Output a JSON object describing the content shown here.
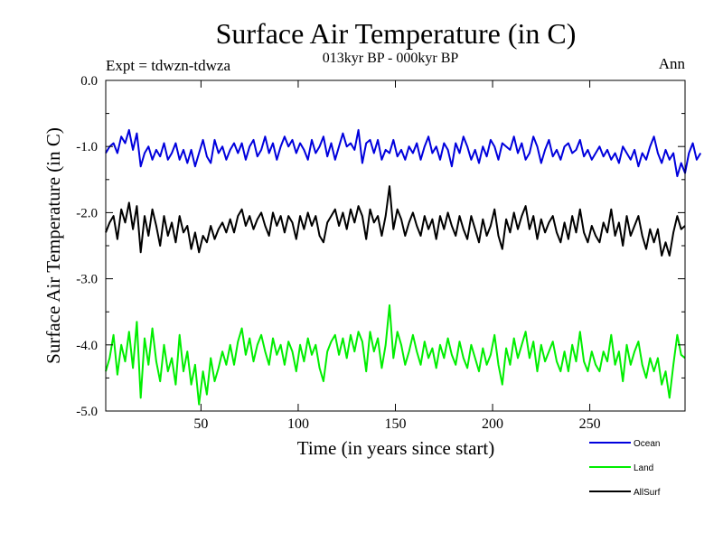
{
  "chart_data": {
    "type": "line",
    "title": "Surface Air Temperature (in C)",
    "subtitle": "013kyr BP - 000kyr BP",
    "left_note": "Expt = tdwzn-tdwza",
    "right_note": "Ann",
    "xlabel": "Time (in years since start)",
    "ylabel": "Surface Air Temperature (in C)",
    "xlim": [
      1,
      299
    ],
    "ylim": [
      -5.0,
      0.0
    ],
    "xticks": [
      50,
      100,
      150,
      200,
      250
    ],
    "xtick_labels": [
      "50",
      "100",
      "150",
      "200",
      "250"
    ],
    "yticks": [
      0.0,
      -1.0,
      -2.0,
      -3.0,
      -4.0,
      -5.0
    ],
    "ytick_labels": [
      "0.0",
      "-1.0",
      "-2.0",
      "-3.0",
      "-4.0",
      "-5.0"
    ],
    "grid": false,
    "legend_position": "bottom-right, below plot",
    "series": [
      {
        "name": "Ocean",
        "color": "#0000dd",
        "x_start": 1,
        "x_step": 2,
        "values": [
          -1.1,
          -1.0,
          -0.95,
          -1.1,
          -0.85,
          -0.95,
          -0.75,
          -1.05,
          -0.8,
          -1.3,
          -1.1,
          -1.0,
          -1.2,
          -1.05,
          -1.15,
          -0.95,
          -1.2,
          -1.1,
          -0.95,
          -1.2,
          -1.05,
          -1.25,
          -1.05,
          -1.3,
          -1.1,
          -0.9,
          -1.15,
          -1.25,
          -0.9,
          -1.1,
          -1.0,
          -1.2,
          -1.05,
          -0.95,
          -1.1,
          -0.95,
          -1.2,
          -1.0,
          -0.9,
          -1.15,
          -1.05,
          -0.85,
          -1.1,
          -0.95,
          -1.2,
          -1.0,
          -0.85,
          -1.0,
          -0.9,
          -1.1,
          -0.95,
          -1.05,
          -1.2,
          -0.9,
          -1.1,
          -1.0,
          -0.85,
          -1.15,
          -0.95,
          -1.2,
          -1.0,
          -0.8,
          -1.0,
          -0.95,
          -1.05,
          -0.75,
          -1.25,
          -0.95,
          -0.9,
          -1.1,
          -0.9,
          -1.2,
          -1.05,
          -1.1,
          -0.9,
          -1.15,
          -1.05,
          -1.2,
          -1.0,
          -1.1,
          -0.95,
          -1.2,
          -1.0,
          -0.85,
          -1.1,
          -1.0,
          -1.2,
          -0.95,
          -1.05,
          -1.3,
          -0.95,
          -1.1,
          -0.85,
          -1.0,
          -1.2,
          -1.05,
          -1.25,
          -1.0,
          -1.15,
          -0.9,
          -1.0,
          -1.2,
          -0.95,
          -1.0,
          -1.05,
          -0.85,
          -1.1,
          -0.95,
          -1.2,
          -1.1,
          -0.85,
          -1.0,
          -1.25,
          -1.05,
          -0.9,
          -1.15,
          -1.05,
          -1.2,
          -1.0,
          -0.95,
          -1.1,
          -1.05,
          -0.9,
          -1.15,
          -1.05,
          -1.2,
          -1.1,
          -1.0,
          -1.15,
          -1.05,
          -1.2,
          -1.1,
          -1.25,
          -1.0,
          -1.1,
          -1.2,
          -1.05,
          -1.3,
          -1.1,
          -1.2,
          -1.0,
          -0.85,
          -1.1,
          -1.25,
          -1.05,
          -1.2,
          -1.1,
          -1.45,
          -1.25,
          -1.4,
          -1.1,
          -0.95,
          -1.2,
          -1.1
        ]
      },
      {
        "name": "Land",
        "color": "#00ee00",
        "x_start": 1,
        "x_step": 2,
        "values": [
          -4.4,
          -4.2,
          -3.85,
          -4.45,
          -4.0,
          -4.25,
          -3.8,
          -4.35,
          -3.65,
          -4.8,
          -3.9,
          -4.3,
          -3.75,
          -4.25,
          -4.55,
          -4.0,
          -4.4,
          -4.2,
          -4.6,
          -3.85,
          -4.4,
          -4.1,
          -4.6,
          -4.3,
          -4.9,
          -4.4,
          -4.75,
          -4.2,
          -4.55,
          -4.35,
          -4.1,
          -4.3,
          -4.0,
          -4.3,
          -3.95,
          -3.75,
          -4.15,
          -3.9,
          -4.25,
          -4.0,
          -3.85,
          -4.1,
          -4.3,
          -3.9,
          -4.15,
          -4.0,
          -4.3,
          -3.95,
          -4.1,
          -4.4,
          -4.0,
          -4.25,
          -3.9,
          -4.15,
          -4.0,
          -4.35,
          -4.55,
          -4.1,
          -3.95,
          -3.85,
          -4.15,
          -3.9,
          -4.2,
          -3.85,
          -4.1,
          -3.8,
          -3.95,
          -4.4,
          -3.8,
          -4.1,
          -3.9,
          -4.35,
          -4.0,
          -3.4,
          -4.2,
          -3.8,
          -4.0,
          -4.3,
          -4.1,
          -3.85,
          -4.1,
          -4.3,
          -3.95,
          -4.2,
          -4.05,
          -4.35,
          -4.0,
          -4.2,
          -3.9,
          -4.15,
          -4.3,
          -3.95,
          -4.2,
          -4.35,
          -4.0,
          -4.2,
          -4.4,
          -4.05,
          -4.3,
          -4.15,
          -3.85,
          -4.3,
          -4.6,
          -4.05,
          -4.3,
          -3.9,
          -4.2,
          -4.0,
          -3.8,
          -4.2,
          -3.95,
          -4.4,
          -4.0,
          -4.25,
          -4.1,
          -3.95,
          -4.25,
          -4.4,
          -4.1,
          -4.4,
          -4.0,
          -4.25,
          -3.8,
          -4.25,
          -4.4,
          -4.1,
          -4.3,
          -4.4,
          -4.1,
          -4.25,
          -3.85,
          -4.3,
          -4.1,
          -4.55,
          -4.0,
          -4.3,
          -4.1,
          -3.95,
          -4.3,
          -4.5,
          -4.2,
          -4.4,
          -4.2,
          -4.6,
          -4.4,
          -4.8,
          -4.3,
          -3.85,
          -4.15,
          -4.2
        ]
      },
      {
        "name": "AllSurf",
        "color": "#000000",
        "x_start": 1,
        "x_step": 2,
        "values": [
          -2.3,
          -2.15,
          -2.05,
          -2.4,
          -1.95,
          -2.15,
          -1.85,
          -2.25,
          -1.9,
          -2.6,
          -2.05,
          -2.35,
          -1.95,
          -2.2,
          -2.5,
          -2.05,
          -2.35,
          -2.15,
          -2.45,
          -2.05,
          -2.3,
          -2.2,
          -2.55,
          -2.3,
          -2.6,
          -2.35,
          -2.45,
          -2.2,
          -2.4,
          -2.25,
          -2.15,
          -2.3,
          -2.1,
          -2.3,
          -2.05,
          -1.95,
          -2.2,
          -2.05,
          -2.25,
          -2.1,
          -2.0,
          -2.2,
          -2.35,
          -2.0,
          -2.2,
          -2.05,
          -2.3,
          -2.05,
          -2.15,
          -2.4,
          -2.05,
          -2.25,
          -2.0,
          -2.2,
          -2.05,
          -2.35,
          -2.45,
          -2.15,
          -2.05,
          -1.95,
          -2.2,
          -2.0,
          -2.25,
          -1.95,
          -2.15,
          -1.9,
          -2.05,
          -2.4,
          -1.95,
          -2.15,
          -2.05,
          -2.35,
          -2.05,
          -1.6,
          -2.25,
          -1.95,
          -2.1,
          -2.35,
          -2.15,
          -2.0,
          -2.2,
          -2.35,
          -2.05,
          -2.25,
          -2.1,
          -2.4,
          -2.05,
          -2.25,
          -2.0,
          -2.2,
          -2.35,
          -2.05,
          -2.25,
          -2.4,
          -2.05,
          -2.25,
          -2.45,
          -2.1,
          -2.35,
          -2.2,
          -1.95,
          -2.35,
          -2.55,
          -2.1,
          -2.3,
          -2.0,
          -2.25,
          -2.05,
          -1.9,
          -2.25,
          -2.05,
          -2.4,
          -2.1,
          -2.3,
          -2.15,
          -2.05,
          -2.3,
          -2.45,
          -2.15,
          -2.4,
          -2.05,
          -2.3,
          -1.95,
          -2.3,
          -2.45,
          -2.2,
          -2.35,
          -2.45,
          -2.15,
          -2.3,
          -1.95,
          -2.35,
          -2.15,
          -2.5,
          -2.05,
          -2.35,
          -2.2,
          -2.05,
          -2.35,
          -2.55,
          -2.25,
          -2.45,
          -2.25,
          -2.65,
          -2.45,
          -2.65,
          -2.3,
          -2.05,
          -2.25,
          -2.2
        ]
      }
    ]
  }
}
